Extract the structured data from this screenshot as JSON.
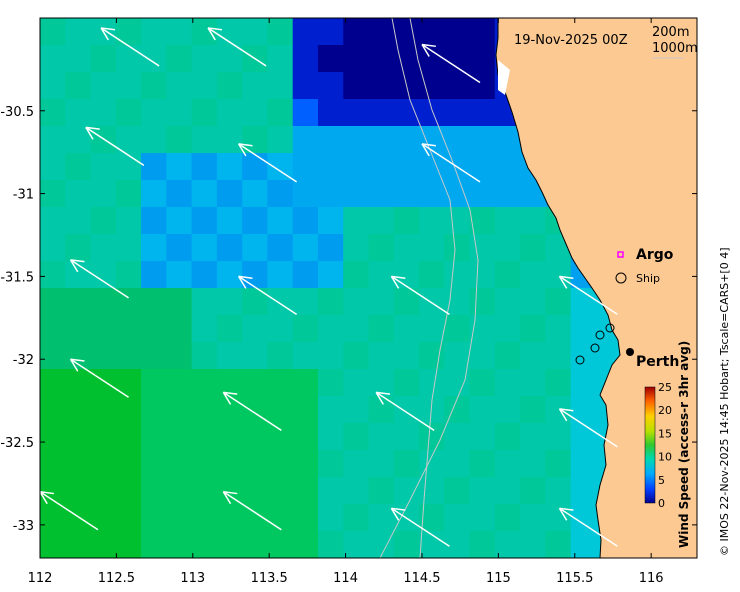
{
  "map": {
    "date_label": "19-Nov-2025 00Z",
    "contour_labels": [
      "200m",
      "1000m"
    ],
    "lon_ticks": [
      112,
      112.5,
      113,
      113.5,
      114,
      114.5,
      115,
      115.5,
      116
    ],
    "lat_ticks": [
      -30.5,
      -31,
      -31.5,
      -32,
      -32.5,
      -33
    ],
    "lon_tick_text": [
      "112",
      "112.5",
      "113",
      "113.5",
      "114",
      "114.5",
      "115",
      "115.5",
      "116"
    ],
    "lat_tick_text": [
      "-30.5",
      "-31",
      "-31.5",
      "-32",
      "-32.5",
      "-33"
    ],
    "lon_range": [
      112,
      116.3
    ],
    "lat_range": [
      -33.2,
      -29.94
    ],
    "legend": {
      "argo_label": "Argo",
      "ship_label": "Ship"
    },
    "place_label": "Perth",
    "colorbar": {
      "title": "Wind Speed (access-r 3hr avg)",
      "ticks": [
        "0",
        "5",
        "10",
        "15",
        "20",
        "25"
      ],
      "range": [
        0,
        25
      ]
    },
    "credit": "© IMOS 22-Nov-2025 14:45 Hobart; Tscale=CARS+[0 4]",
    "colors": {
      "land": "#fcc992",
      "arrow": "#ffffff",
      "contour": "#c8c8c8",
      "argo": "#ff00ff"
    }
  },
  "chart_data": {
    "type": "heatmap",
    "variable": "Wind Speed (access-r 3hr avg)",
    "xlabel": "",
    "ylabel": "",
    "x_range": [
      112,
      116.3
    ],
    "y_range": [
      -33.2,
      -29.94
    ],
    "wind_arrows_lonlat": [
      [
        112.4,
        -30.0
      ],
      [
        113.1,
        -30.0
      ],
      [
        114.5,
        -30.1
      ],
      [
        112.3,
        -30.6
      ],
      [
        113.3,
        -30.7
      ],
      [
        114.5,
        -30.7
      ],
      [
        112.2,
        -31.4
      ],
      [
        113.3,
        -31.5
      ],
      [
        114.3,
        -31.5
      ],
      [
        115.4,
        -31.5
      ],
      [
        112.2,
        -32.0
      ],
      [
        113.2,
        -32.2
      ],
      [
        114.2,
        -32.2
      ],
      [
        115.4,
        -32.3
      ],
      [
        112.0,
        -32.8
      ],
      [
        113.2,
        -32.8
      ],
      [
        114.3,
        -32.9
      ],
      [
        115.4,
        -32.9
      ]
    ]
  }
}
